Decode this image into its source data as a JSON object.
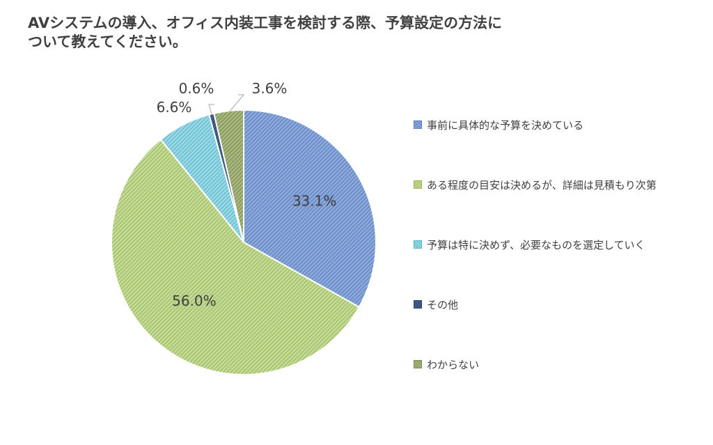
{
  "chart_data": {
    "type": "pie",
    "title": "AVシステムの導入、オフィス内装工事を検討する際、予算設定の方法に\nついて教えてください。",
    "unit": "%",
    "legend_position": "right",
    "slices": [
      {
        "label": "事前に具体的な予算を決めている",
        "value": 33.1,
        "display": "33.1%",
        "color": "#8eaadb",
        "stripe": "#5b7fc0"
      },
      {
        "label": "ある程度の目安は決めるが、詳細は見積もり次第",
        "value": 56.0,
        "display": "56.0%",
        "color": "#c5dc99",
        "stripe": "#9ab85c"
      },
      {
        "label": "予算は特に決めず、必要なものを選定していく",
        "value": 6.6,
        "display": "6.6%",
        "color": "#9bd9e6",
        "stripe": "#5bb7cc"
      },
      {
        "label": "その他",
        "value": 0.6,
        "display": "0.6%",
        "color": "#44608f",
        "stripe": "#2f4670"
      },
      {
        "label": "わからない",
        "value": 3.6,
        "display": "3.6%",
        "color": "#a8b87e",
        "stripe": "#7c8c52"
      }
    ]
  }
}
